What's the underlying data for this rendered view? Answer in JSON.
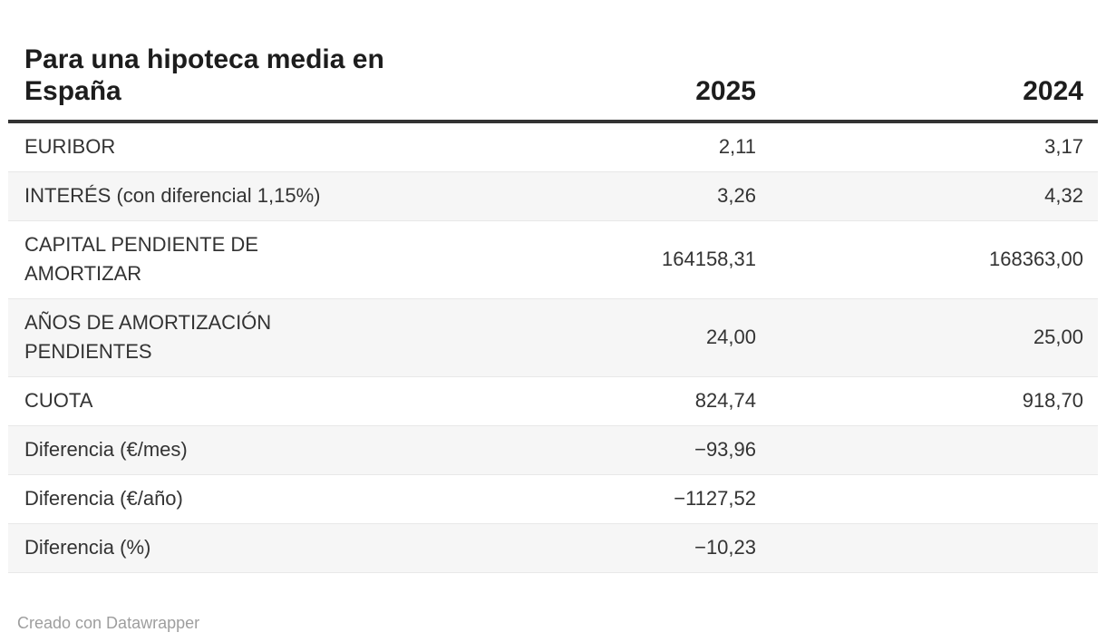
{
  "chart_data": {
    "type": "table",
    "title": "Para una hipoteca media en España",
    "title_lines": [
      "Para una hipoteca media en",
      "España"
    ],
    "columns": [
      "",
      "2025",
      "2024"
    ],
    "rows": [
      {
        "label": "EURIBOR",
        "label_lines": [
          "EURIBOR"
        ],
        "values": [
          "2,11",
          "3,17"
        ]
      },
      {
        "label": "INTERÉS (con diferencial 1,15%)",
        "label_lines": [
          "INTERÉS (con diferencial 1,15%)"
        ],
        "values": [
          "3,26",
          "4,32"
        ]
      },
      {
        "label": "CAPITAL PENDIENTE DE AMORTIZAR",
        "label_lines": [
          "CAPITAL PENDIENTE DE",
          "AMORTIZAR"
        ],
        "values": [
          "164158,31",
          "168363,00"
        ]
      },
      {
        "label": "AÑOS DE AMORTIZACIÓN PENDIENTES",
        "label_lines": [
          "AÑOS DE AMORTIZACIÓN",
          "PENDIENTES"
        ],
        "values": [
          "24,00",
          "25,00"
        ]
      },
      {
        "label": "CUOTA",
        "label_lines": [
          "CUOTA"
        ],
        "values": [
          "824,74",
          "918,70"
        ]
      },
      {
        "label": "Diferencia (€/mes)",
        "label_lines": [
          "Diferencia (€/mes)"
        ],
        "values": [
          "−93,96",
          ""
        ]
      },
      {
        "label": "Diferencia (€/año)",
        "label_lines": [
          "Diferencia (€/año)"
        ],
        "values": [
          "−1127,52",
          ""
        ]
      },
      {
        "label": "Diferencia (%)",
        "label_lines": [
          "Diferencia (%)"
        ],
        "values": [
          "−10,23",
          ""
        ]
      }
    ],
    "layout": {
      "zebra_striping": true,
      "value_alignment": "right",
      "header_rule": true,
      "grid": false
    }
  },
  "colors": {
    "background": "#ffffff",
    "title_text": "#1d1d1d",
    "body_text": "#333333",
    "header_rule": "#333333",
    "zebra_row": "#f6f6f6",
    "row_border": "#e8e8e8",
    "footer_text": "#9e9e9e"
  },
  "footer": {
    "credit": "Creado con Datawrapper"
  }
}
